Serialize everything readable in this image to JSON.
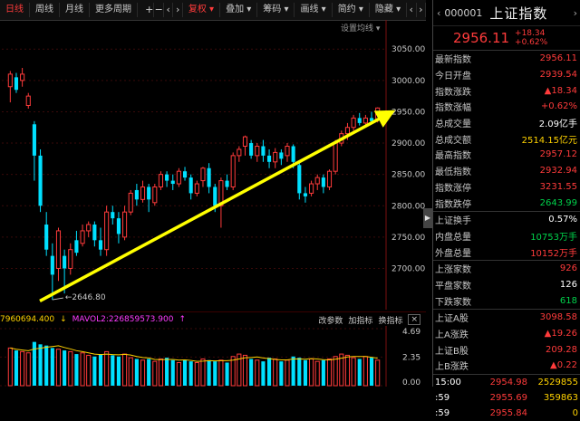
{
  "toolbar": {
    "periods": [
      {
        "label": "日线",
        "active": true
      },
      {
        "label": "周线",
        "active": false
      },
      {
        "label": "月线",
        "active": false
      },
      {
        "label": "更多周期",
        "active": false
      }
    ],
    "tools": [
      {
        "label": "复权",
        "active": true
      },
      {
        "label": "叠加",
        "active": false
      },
      {
        "label": "筹码",
        "active": false
      },
      {
        "label": "画线",
        "active": false
      },
      {
        "label": "简约",
        "active": false
      },
      {
        "label": "隐藏",
        "active": false
      }
    ]
  },
  "settings_label": "设置均线",
  "indicator_bar": {
    "vol_left": "7960694.400",
    "ma": "MAVOL2:226859573.900",
    "change_params": "改参数",
    "add_indicator": "加指标",
    "switch_indicator": "换指标"
  },
  "chart_data": {
    "type": "candlestick",
    "y_ticks": [
      "3050.00",
      "3000.00",
      "2950.00",
      "2900.00",
      "2850.00",
      "2800.00",
      "2750.00",
      "2700.00"
    ],
    "ylim": [
      2640,
      3085
    ],
    "low_annotation": "2646.80",
    "vol_ticks": [
      "4.69",
      "2.35",
      "0.00"
    ],
    "candles": [
      {
        "o": 2990,
        "c": 3010,
        "h": 3015,
        "l": 2965
      },
      {
        "o": 3005,
        "c": 2985,
        "h": 3012,
        "l": 2980
      },
      {
        "o": 3000,
        "c": 3010,
        "h": 3020,
        "l": 2990
      },
      {
        "o": 2960,
        "c": 2975,
        "h": 2980,
        "l": 2955
      },
      {
        "o": 2930,
        "c": 2880,
        "h": 2935,
        "l": 2840
      },
      {
        "o": 2880,
        "c": 2800,
        "h": 2890,
        "l": 2790
      },
      {
        "o": 2770,
        "c": 2730,
        "h": 2790,
        "l": 2720
      },
      {
        "o": 2720,
        "c": 2690,
        "h": 2740,
        "l": 2650
      },
      {
        "o": 2700,
        "c": 2760,
        "h": 2765,
        "l": 2680
      },
      {
        "o": 2720,
        "c": 2700,
        "h": 2730,
        "l": 2660
      },
      {
        "o": 2700,
        "c": 2730,
        "h": 2740,
        "l": 2690
      },
      {
        "o": 2745,
        "c": 2725,
        "h": 2760,
        "l": 2720
      },
      {
        "o": 2740,
        "c": 2760,
        "h": 2770,
        "l": 2735
      },
      {
        "o": 2760,
        "c": 2770,
        "h": 2775,
        "l": 2750
      },
      {
        "o": 2770,
        "c": 2745,
        "h": 2775,
        "l": 2735
      },
      {
        "o": 2745,
        "c": 2730,
        "h": 2765,
        "l": 2720
      },
      {
        "o": 2730,
        "c": 2790,
        "h": 2800,
        "l": 2720
      },
      {
        "o": 2790,
        "c": 2780,
        "h": 2800,
        "l": 2770
      },
      {
        "o": 2780,
        "c": 2755,
        "h": 2790,
        "l": 2740
      },
      {
        "o": 2750,
        "c": 2790,
        "h": 2800,
        "l": 2745
      },
      {
        "o": 2790,
        "c": 2820,
        "h": 2825,
        "l": 2785
      },
      {
        "o": 2825,
        "c": 2810,
        "h": 2835,
        "l": 2800
      },
      {
        "o": 2810,
        "c": 2830,
        "h": 2840,
        "l": 2805
      },
      {
        "o": 2830,
        "c": 2810,
        "h": 2835,
        "l": 2790
      },
      {
        "o": 2805,
        "c": 2830,
        "h": 2835,
        "l": 2800
      },
      {
        "o": 2830,
        "c": 2850,
        "h": 2855,
        "l": 2825
      },
      {
        "o": 2850,
        "c": 2840,
        "h": 2855,
        "l": 2830
      },
      {
        "o": 2840,
        "c": 2835,
        "h": 2850,
        "l": 2825
      },
      {
        "o": 2835,
        "c": 2855,
        "h": 2860,
        "l": 2830
      },
      {
        "o": 2855,
        "c": 2845,
        "h": 2862,
        "l": 2840
      },
      {
        "o": 2845,
        "c": 2820,
        "h": 2850,
        "l": 2810
      },
      {
        "o": 2820,
        "c": 2835,
        "h": 2840,
        "l": 2815
      },
      {
        "o": 2840,
        "c": 2860,
        "h": 2862,
        "l": 2830
      },
      {
        "o": 2860,
        "c": 2830,
        "h": 2868,
        "l": 2820
      },
      {
        "o": 2830,
        "c": 2800,
        "h": 2835,
        "l": 2790
      },
      {
        "o": 2800,
        "c": 2840,
        "h": 2845,
        "l": 2765
      },
      {
        "o": 2840,
        "c": 2830,
        "h": 2850,
        "l": 2825
      },
      {
        "o": 2830,
        "c": 2880,
        "h": 2885,
        "l": 2825
      },
      {
        "o": 2880,
        "c": 2890,
        "h": 2895,
        "l": 2870
      },
      {
        "o": 2895,
        "c": 2910,
        "h": 2912,
        "l": 2880
      },
      {
        "o": 2900,
        "c": 2880,
        "h": 2905,
        "l": 2875
      },
      {
        "o": 2880,
        "c": 2895,
        "h": 2900,
        "l": 2870
      },
      {
        "o": 2895,
        "c": 2880,
        "h": 2905,
        "l": 2870
      },
      {
        "o": 2880,
        "c": 2870,
        "h": 2890,
        "l": 2860
      },
      {
        "o": 2870,
        "c": 2885,
        "h": 2892,
        "l": 2860
      },
      {
        "o": 2885,
        "c": 2875,
        "h": 2890,
        "l": 2865
      },
      {
        "o": 2880,
        "c": 2895,
        "h": 2900,
        "l": 2870
      },
      {
        "o": 2895,
        "c": 2870,
        "h": 2898,
        "l": 2860
      },
      {
        "o": 2865,
        "c": 2820,
        "h": 2870,
        "l": 2810
      },
      {
        "o": 2820,
        "c": 2815,
        "h": 2830,
        "l": 2805
      },
      {
        "o": 2820,
        "c": 2835,
        "h": 2840,
        "l": 2815
      },
      {
        "o": 2835,
        "c": 2845,
        "h": 2850,
        "l": 2825
      },
      {
        "o": 2845,
        "c": 2830,
        "h": 2850,
        "l": 2820
      },
      {
        "o": 2830,
        "c": 2855,
        "h": 2858,
        "l": 2825
      },
      {
        "o": 2855,
        "c": 2900,
        "h": 2905,
        "l": 2850
      },
      {
        "o": 2900,
        "c": 2915,
        "h": 2920,
        "l": 2895
      },
      {
        "o": 2915,
        "c": 2925,
        "h": 2932,
        "l": 2905
      },
      {
        "o": 2925,
        "c": 2940,
        "h": 2945,
        "l": 2920
      },
      {
        "o": 2940,
        "c": 2932,
        "h": 2948,
        "l": 2928
      },
      {
        "o": 2932,
        "c": 2940,
        "h": 2945,
        "l": 2925
      },
      {
        "o": 2940,
        "c": 2935,
        "h": 2950,
        "l": 2930
      },
      {
        "o": 2939,
        "c": 2956,
        "h": 2957,
        "l": 2933
      }
    ],
    "volumes": [
      3.1,
      2.9,
      2.8,
      2.7,
      3.6,
      3.4,
      3.3,
      3.1,
      3.0,
      2.9,
      2.8,
      2.6,
      2.7,
      2.5,
      2.4,
      2.6,
      2.8,
      2.5,
      2.4,
      2.6,
      2.3,
      2.2,
      2.1,
      2.2,
      2.0,
      2.2,
      2.3,
      2.1,
      1.9,
      2.1,
      2.0,
      1.9,
      2.2,
      2.1,
      2.0,
      2.1,
      1.9,
      2.4,
      2.6,
      2.5,
      2.2,
      2.1,
      2.0,
      2.3,
      2.2,
      2.0,
      2.1,
      2.4,
      2.3,
      2.1,
      2.2,
      2.0,
      2.1,
      2.2,
      2.4,
      2.6,
      2.5,
      2.3,
      2.2,
      2.4,
      2.3,
      2.1
    ]
  },
  "right_panel": {
    "code": "000001",
    "name": "上证指数",
    "price": "2956.11",
    "change": "+18.34",
    "change_pct": "+0.62%",
    "rows": [
      {
        "label": "最新指数",
        "value": "2956.11",
        "color": "red"
      },
      {
        "label": "今日开盘",
        "value": "2939.54",
        "color": "red"
      },
      {
        "label": "指数涨跌",
        "value": "▲18.34",
        "color": "red"
      },
      {
        "label": "指数涨幅",
        "value": "+0.62%",
        "color": "red"
      },
      {
        "label": "总成交量",
        "value": "2.09亿手",
        "color": "white"
      },
      {
        "label": "总成交额",
        "value": "2514.15亿元",
        "color": "yellow"
      },
      {
        "label": "最高指数",
        "value": "2957.12",
        "color": "red"
      },
      {
        "label": "最低指数",
        "value": "2932.94",
        "color": "red"
      },
      {
        "label": "指数涨停",
        "value": "3231.55",
        "color": "red"
      },
      {
        "label": "指数跌停",
        "value": "2643.99",
        "color": "green"
      }
    ],
    "rows2": [
      {
        "label": "上证换手",
        "value": "0.57%",
        "color": "white"
      },
      {
        "label": "内盘总量",
        "value": "10753万手",
        "color": "green"
      },
      {
        "label": "外盘总量",
        "value": "10152万手",
        "color": "red"
      }
    ],
    "rows3": [
      {
        "label": "上涨家数",
        "value": "926",
        "color": "red"
      },
      {
        "label": "平盘家数",
        "value": "126",
        "color": "white"
      },
      {
        "label": "下跌家数",
        "value": "618",
        "color": "green"
      }
    ],
    "rows4": [
      {
        "label": "上证A股",
        "value": "3098.58",
        "color": "red"
      },
      {
        "label": "上A涨跌",
        "value": "▲19.26",
        "color": "red"
      },
      {
        "label": "上证B股",
        "value": "209.28",
        "color": "red"
      },
      {
        "label": "上B涨跌",
        "value": "▲0.22",
        "color": "red"
      }
    ],
    "trades": [
      {
        "time": "15:00",
        "price": "2954.98",
        "vol": "2529855",
        "color": "red"
      },
      {
        "time": ":59",
        "price": "2955.69",
        "vol": "359863",
        "color": "red"
      },
      {
        "time": ":59",
        "price": "2955.84",
        "vol": "0",
        "color": "red"
      }
    ]
  }
}
